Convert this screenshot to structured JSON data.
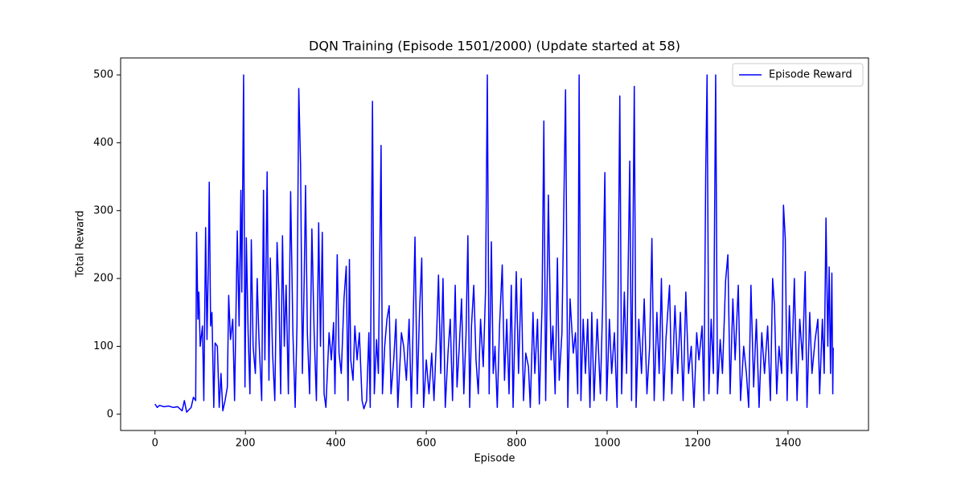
{
  "chart_data": {
    "type": "line",
    "title": "DQN Training (Episode 1501/2000) (Update started at 58)",
    "xlabel": "Episode",
    "ylabel": "Total Reward",
    "x": [
      0,
      5,
      10,
      20,
      30,
      40,
      50,
      60,
      65,
      70,
      80,
      85,
      90,
      92,
      95,
      97,
      100,
      105,
      108,
      112,
      115,
      118,
      120,
      123,
      126,
      130,
      133,
      138,
      142,
      146,
      150,
      155,
      160,
      163,
      167,
      172,
      176,
      182,
      186,
      190,
      192,
      196,
      199,
      202,
      206,
      210,
      213,
      217,
      222,
      226,
      230,
      236,
      240,
      243,
      248,
      252,
      255,
      260,
      265,
      270,
      274,
      278,
      282,
      286,
      290,
      295,
      300,
      305,
      310,
      314,
      318,
      322,
      326,
      330,
      333,
      337,
      342,
      347,
      352,
      357,
      362,
      366,
      370,
      374,
      378,
      385,
      390,
      395,
      398,
      403,
      407,
      412,
      418,
      423,
      427,
      430,
      433,
      438,
      442,
      447,
      452,
      458,
      462,
      468,
      473,
      476,
      481,
      485,
      490,
      494,
      500,
      503,
      508,
      513,
      518,
      522,
      528,
      533,
      537,
      545,
      550,
      556,
      562,
      567,
      575,
      580,
      585,
      590,
      594,
      600,
      606,
      612,
      617,
      623,
      627,
      632,
      637,
      642,
      648,
      653,
      658,
      664,
      668,
      673,
      678,
      683,
      688,
      692,
      696,
      700,
      705,
      710,
      715,
      720,
      726,
      731,
      735,
      739,
      744,
      748,
      752,
      757,
      762,
      768,
      773,
      778,
      783,
      788,
      792,
      799,
      804,
      810,
      815,
      820,
      826,
      830,
      836,
      840,
      846,
      850,
      856,
      860,
      864,
      870,
      876,
      880,
      885,
      890,
      894,
      900,
      908,
      913,
      918,
      925,
      930,
      935,
      938,
      942,
      947,
      952,
      957,
      962,
      966,
      971,
      978,
      985,
      990,
      995,
      999,
      1005,
      1010,
      1016,
      1022,
      1028,
      1032,
      1038,
      1043,
      1050,
      1054,
      1060,
      1064,
      1070,
      1076,
      1082,
      1088,
      1094,
      1099,
      1104,
      1110,
      1115,
      1120,
      1125,
      1130,
      1138,
      1143,
      1150,
      1156,
      1162,
      1168,
      1174,
      1180,
      1186,
      1192,
      1198,
      1203,
      1210,
      1214,
      1218,
      1221,
      1225,
      1230,
      1235,
      1240,
      1244,
      1250,
      1255,
      1262,
      1267,
      1272,
      1278,
      1283,
      1290,
      1295,
      1302,
      1308,
      1313,
      1318,
      1324,
      1330,
      1336,
      1342,
      1348,
      1355,
      1361,
      1366,
      1370,
      1375,
      1380,
      1386,
      1390,
      1394,
      1398,
      1403,
      1408,
      1414,
      1420,
      1426,
      1432,
      1438,
      1442,
      1448,
      1453,
      1460,
      1466,
      1470,
      1476,
      1480,
      1484,
      1488,
      1491,
      1494,
      1497,
      1499,
      1500
    ],
    "series": [
      {
        "name": "Episode Reward",
        "color": "#0000ff",
        "values": [
          15,
          10,
          13,
          11,
          12,
          10,
          11,
          5,
          20,
          3,
          10,
          25,
          20,
          268,
          140,
          180,
          100,
          130,
          20,
          275,
          110,
          220,
          342,
          130,
          150,
          10,
          105,
          100,
          10,
          60,
          5,
          20,
          40,
          175,
          110,
          140,
          20,
          270,
          130,
          330,
          180,
          500,
          40,
          260,
          120,
          30,
          257,
          100,
          60,
          200,
          110,
          20,
          330,
          80,
          357,
          50,
          230,
          90,
          20,
          253,
          180,
          30,
          263,
          100,
          190,
          30,
          328,
          120,
          10,
          130,
          480,
          367,
          60,
          200,
          337,
          120,
          30,
          273,
          120,
          20,
          282,
          100,
          268,
          30,
          10,
          120,
          80,
          135,
          30,
          235,
          90,
          60,
          170,
          218,
          20,
          228,
          80,
          50,
          130,
          80,
          120,
          20,
          8,
          20,
          120,
          10,
          461,
          30,
          110,
          60,
          396,
          30,
          100,
          140,
          160,
          30,
          80,
          140,
          10,
          120,
          100,
          50,
          140,
          10,
          261,
          30,
          150,
          230,
          10,
          80,
          30,
          90,
          20,
          120,
          205,
          60,
          200,
          10,
          90,
          140,
          20,
          190,
          40,
          100,
          170,
          30,
          120,
          263,
          10,
          130,
          190,
          80,
          30,
          140,
          70,
          180,
          500,
          30,
          254,
          60,
          100,
          10,
          130,
          220,
          50,
          140,
          30,
          190,
          10,
          210,
          60,
          200,
          20,
          90,
          70,
          10,
          150,
          60,
          140,
          15,
          160,
          432,
          20,
          323,
          80,
          130,
          30,
          230,
          50,
          120,
          478,
          10,
          170,
          90,
          120,
          30,
          500,
          20,
          140,
          60,
          140,
          10,
          150,
          20,
          140,
          30,
          160,
          356,
          20,
          140,
          60,
          120,
          10,
          469,
          30,
          180,
          60,
          373,
          20,
          483,
          10,
          140,
          60,
          170,
          30,
          100,
          259,
          20,
          150,
          60,
          200,
          20,
          110,
          190,
          30,
          160,
          60,
          150,
          20,
          180,
          60,
          100,
          10,
          120,
          80,
          130,
          20,
          355,
          500,
          30,
          140,
          60,
          500,
          30,
          110,
          60,
          197,
          235,
          30,
          170,
          80,
          190,
          20,
          100,
          60,
          10,
          190,
          40,
          140,
          10,
          120,
          60,
          130,
          20,
          200,
          160,
          30,
          100,
          60,
          308,
          258,
          20,
          160,
          60,
          200,
          20,
          140,
          80,
          210,
          10,
          150,
          60,
          110,
          140,
          30,
          140,
          60,
          289,
          100,
          217,
          60,
          208,
          30,
          98
        ]
      }
    ],
    "xlim": [
      -76,
      1578
    ],
    "ylim": [
      -24,
      525
    ],
    "xticks": [
      0,
      200,
      400,
      600,
      800,
      1000,
      1200,
      1400
    ],
    "yticks": [
      0,
      100,
      200,
      300,
      400,
      500
    ],
    "legend": "upper right",
    "grid": false
  }
}
